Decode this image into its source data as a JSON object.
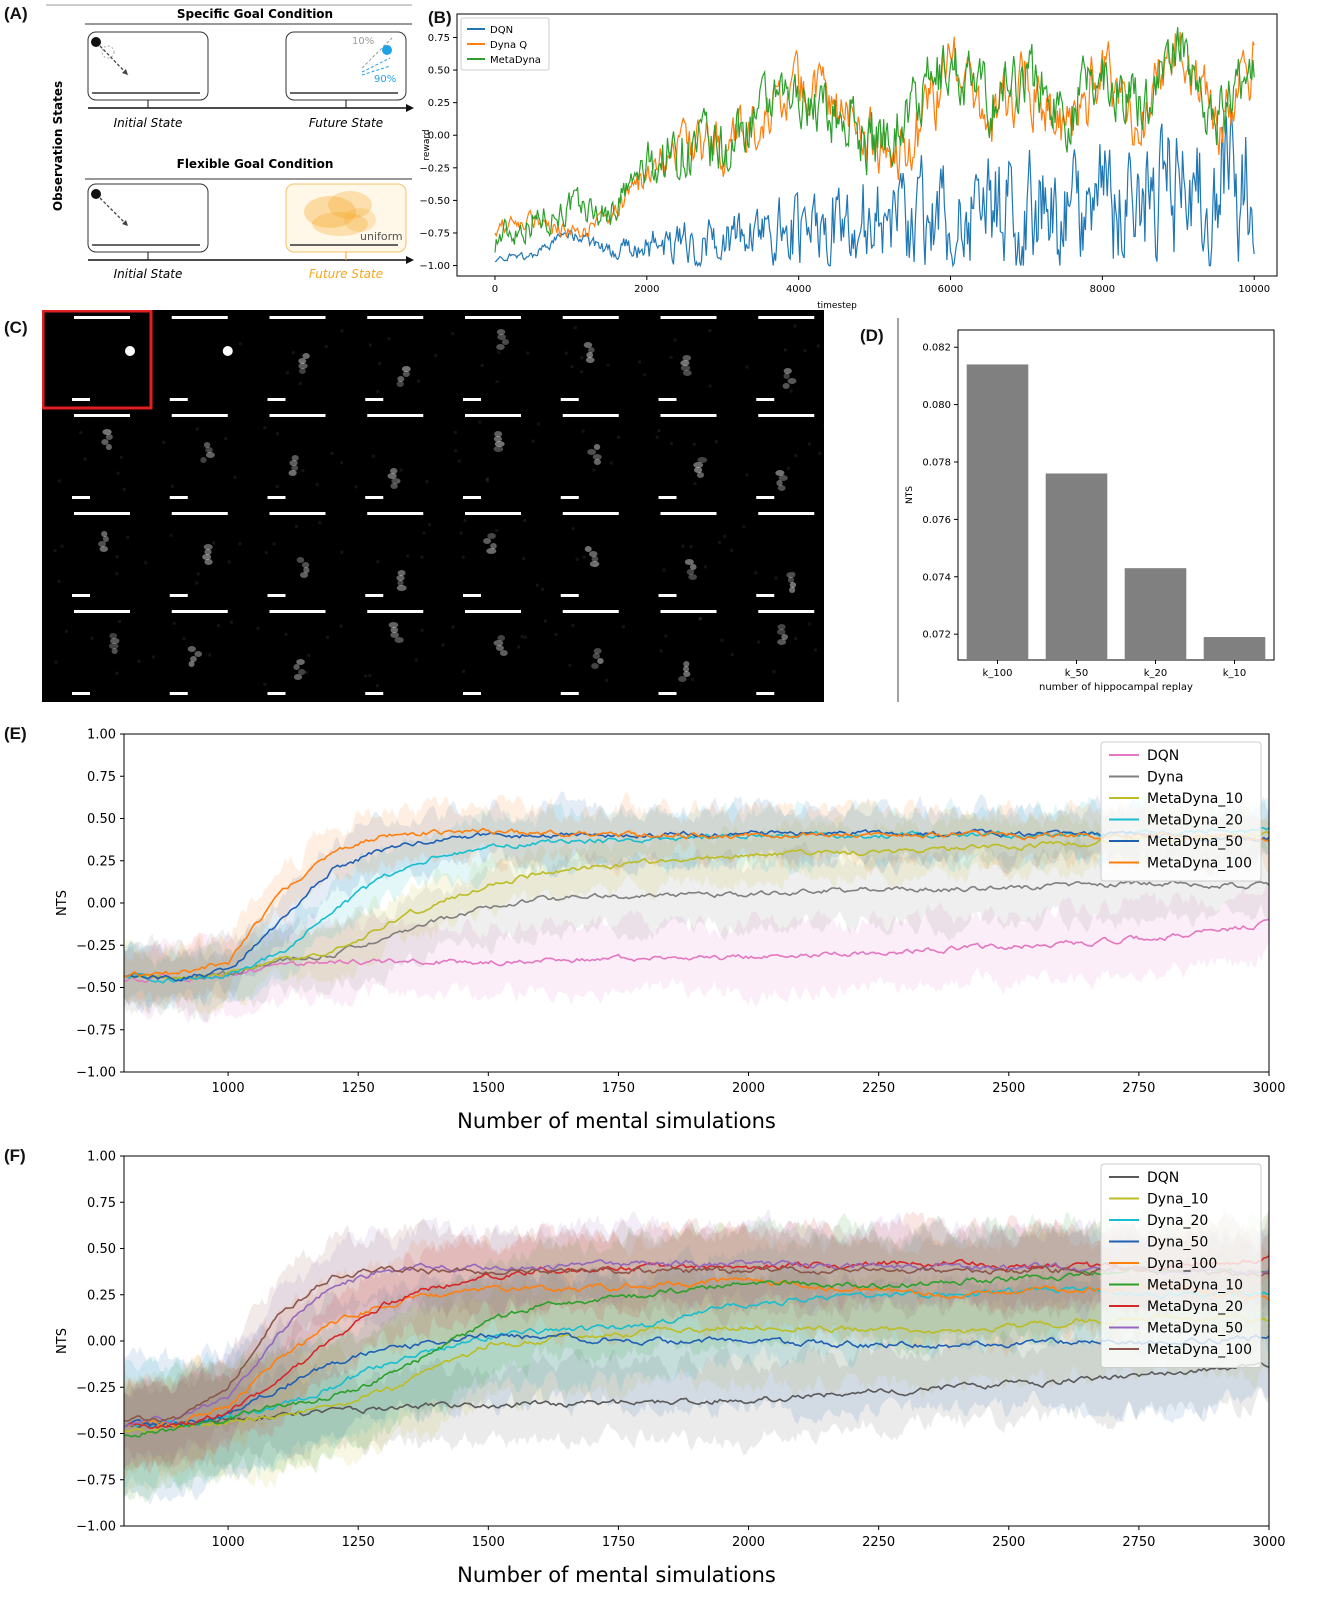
{
  "panel_labels": {
    "a": "(A)",
    "b": "(B)",
    "c": "(C)",
    "d": "(D)",
    "e": "(E)",
    "f": "(F)"
  },
  "panel_a": {
    "side_label": "Observation States",
    "specific_title": "Specific Goal Condition",
    "flexible_title": "Flexible Goal Condition",
    "initial_label": "Initial State",
    "future_label": "Future State",
    "pct_10": "10%",
    "pct_90": "90%",
    "uniform_label": "uniform",
    "colors": {
      "blue": "#1fa3e6",
      "orange": "#f5a623",
      "gray": "#9a9a9a"
    }
  },
  "chart_data": [
    {
      "id": "B",
      "type": "line",
      "xlabel": "timestep",
      "ylabel": "reward",
      "xlim": [
        -500,
        10300
      ],
      "ylim": [
        -1.08,
        0.93
      ],
      "xticks": [
        0,
        2000,
        4000,
        6000,
        8000,
        10000
      ],
      "yticks": [
        -1.0,
        -0.75,
        -0.5,
        -0.25,
        0.0,
        0.25,
        0.5,
        0.75
      ],
      "ytick_labels": [
        "−1.00",
        "−0.75",
        "−0.50",
        "−0.25",
        "0.00",
        "0.25",
        "0.50",
        "0.75"
      ],
      "legend_position": "top-left",
      "series": [
        {
          "name": "DQN",
          "color": "#1f77b4",
          "x": [
            0,
            500,
            1000,
            1500,
            2000,
            2500,
            3000,
            3500,
            4000,
            4500,
            5000,
            5500,
            6000,
            6500,
            7000,
            7500,
            8000,
            8500,
            9000,
            9500,
            10000
          ],
          "y": [
            -0.95,
            -0.92,
            -0.75,
            -0.9,
            -0.85,
            -0.82,
            -0.8,
            -0.78,
            -0.72,
            -0.68,
            -0.62,
            -0.6,
            -0.62,
            -0.58,
            -0.55,
            -0.55,
            -0.52,
            -0.52,
            -0.48,
            -0.48,
            -0.45
          ],
          "spread": [
            0.02,
            0.03,
            0.04,
            0.05,
            0.1,
            0.12,
            0.15,
            0.18,
            0.25,
            0.28,
            0.3,
            0.32,
            0.32,
            0.35,
            0.38,
            0.38,
            0.4,
            0.42,
            0.45,
            0.48,
            0.5
          ]
        },
        {
          "name": "Dyna Q",
          "color": "#ff7f0e",
          "x": [
            0,
            500,
            1000,
            1500,
            2000,
            2500,
            3000,
            3500,
            4000,
            4500,
            5000,
            5500,
            6000,
            6500,
            7000,
            7500,
            8000,
            8500,
            9000,
            9500,
            10000
          ],
          "y": [
            -0.7,
            -0.65,
            -0.75,
            -0.65,
            -0.3,
            -0.05,
            -0.1,
            0.1,
            0.4,
            0.15,
            0.0,
            -0.1,
            0.6,
            0.1,
            0.45,
            -0.05,
            0.5,
            0.05,
            0.7,
            0.1,
            0.5
          ],
          "spread": [
            0.05,
            0.05,
            0.05,
            0.05,
            0.1,
            0.15,
            0.15,
            0.15,
            0.15,
            0.2,
            0.2,
            0.2,
            0.2,
            0.2,
            0.2,
            0.2,
            0.2,
            0.2,
            0.2,
            0.2,
            0.2
          ]
        },
        {
          "name": "MetaDyna",
          "color": "#2ca02c",
          "x": [
            0,
            500,
            1000,
            1500,
            2000,
            2500,
            3000,
            3500,
            4000,
            4500,
            5000,
            5500,
            6000,
            6500,
            7000,
            7500,
            8000,
            8500,
            9000,
            9500,
            10000
          ],
          "y": [
            -0.8,
            -0.65,
            -0.55,
            -0.6,
            -0.25,
            -0.1,
            -0.15,
            0.2,
            0.3,
            0.15,
            -0.05,
            0.2,
            0.55,
            0.25,
            0.5,
            0.15,
            0.5,
            0.2,
            0.72,
            0.1,
            0.55
          ],
          "spread": [
            0.1,
            0.1,
            0.1,
            0.1,
            0.15,
            0.2,
            0.2,
            0.15,
            0.15,
            0.2,
            0.2,
            0.2,
            0.2,
            0.2,
            0.2,
            0.2,
            0.2,
            0.2,
            0.15,
            0.2,
            0.15
          ]
        }
      ]
    },
    {
      "id": "D",
      "type": "bar",
      "categories": [
        "k_100",
        "k_50",
        "k_20",
        "k_10"
      ],
      "values": [
        0.0814,
        0.0776,
        0.0743,
        0.0719
      ],
      "xlabel": "number of hippocampal replay",
      "ylabel": "NTS",
      "ylim": [
        0.0711,
        0.0826
      ],
      "yticks": [
        0.072,
        0.074,
        0.076,
        0.078,
        0.08,
        0.082
      ],
      "ytick_labels": [
        "0.072",
        "0.074",
        "0.076",
        "0.078",
        "0.080",
        "0.082"
      ],
      "bar_color": "#808080"
    },
    {
      "id": "E",
      "type": "line",
      "xlabel": "Number of mental simulations",
      "ylabel": "NTS",
      "xlim": [
        800,
        3000
      ],
      "ylim": [
        -1.0,
        1.0
      ],
      "xticks": [
        1000,
        1250,
        1500,
        1750,
        2000,
        2250,
        2500,
        2750,
        3000
      ],
      "xtick_labels": [
        "1000",
        "1250",
        "1500",
        "1750",
        "2000",
        "2250",
        "2500",
        "2750",
        "3000"
      ],
      "yticks": [
        -1.0,
        -0.75,
        -0.5,
        -0.25,
        0.0,
        0.25,
        0.5,
        0.75,
        1.0
      ],
      "ytick_labels": [
        "−1.00",
        "−0.75",
        "−0.50",
        "−0.25",
        "0.00",
        "0.25",
        "0.50",
        "0.75",
        "1.00"
      ],
      "legend_position": "top-right",
      "series": [
        {
          "name": "DQN",
          "color": "#e377c2",
          "x": [
            800,
            900,
            1000,
            1100,
            1200,
            1300,
            1400,
            1500,
            1600,
            1800,
            2000,
            2200,
            2400,
            2600,
            2800,
            3000
          ],
          "y": [
            -0.45,
            -0.45,
            -0.42,
            -0.38,
            -0.35,
            -0.35,
            -0.35,
            -0.35,
            -0.34,
            -0.33,
            -0.32,
            -0.3,
            -0.27,
            -0.24,
            -0.2,
            -0.12
          ],
          "band": 0.2
        },
        {
          "name": "Dyna",
          "color": "#7f7f7f",
          "x": [
            800,
            900,
            1000,
            1100,
            1200,
            1300,
            1400,
            1500,
            1600,
            1800,
            2000,
            2200,
            2400,
            2600,
            2800,
            3000
          ],
          "y": [
            -0.42,
            -0.45,
            -0.42,
            -0.34,
            -0.3,
            -0.2,
            -0.1,
            -0.02,
            0.02,
            0.05,
            0.05,
            0.08,
            0.08,
            0.1,
            0.12,
            0.1
          ],
          "band": 0.2
        },
        {
          "name": "MetaDyna_10",
          "color": "#bcbd22",
          "x": [
            800,
            900,
            1000,
            1100,
            1200,
            1300,
            1400,
            1500,
            1600,
            1800,
            2000,
            2200,
            2400,
            2600,
            2800,
            3000
          ],
          "y": [
            -0.42,
            -0.45,
            -0.42,
            -0.34,
            -0.3,
            -0.12,
            0.0,
            0.1,
            0.18,
            0.24,
            0.28,
            0.3,
            0.32,
            0.35,
            0.38,
            0.4
          ],
          "band": 0.15
        },
        {
          "name": "MetaDyna_20",
          "color": "#17becf",
          "x": [
            800,
            900,
            1000,
            1100,
            1200,
            1300,
            1400,
            1500,
            1600,
            1800,
            2000,
            2200,
            2400,
            2600,
            2800,
            3000
          ],
          "y": [
            -0.42,
            -0.45,
            -0.42,
            -0.3,
            -0.05,
            0.15,
            0.28,
            0.33,
            0.35,
            0.38,
            0.4,
            0.4,
            0.4,
            0.4,
            0.42,
            0.45
          ],
          "band": 0.15
        },
        {
          "name": "MetaDyna_50",
          "color": "#1f5fb4",
          "x": [
            800,
            900,
            1000,
            1100,
            1200,
            1300,
            1400,
            1500,
            1600,
            1800,
            2000,
            2200,
            2400,
            2600,
            2800,
            3000
          ],
          "y": [
            -0.42,
            -0.45,
            -0.4,
            -0.1,
            0.2,
            0.32,
            0.38,
            0.4,
            0.4,
            0.4,
            0.42,
            0.41,
            0.41,
            0.41,
            0.4,
            0.38
          ],
          "band": 0.15
        },
        {
          "name": "MetaDyna_100",
          "color": "#ff7f0e",
          "x": [
            800,
            900,
            1000,
            1100,
            1200,
            1300,
            1400,
            1500,
            1600,
            1800,
            2000,
            2200,
            2400,
            2600,
            2800,
            3000
          ],
          "y": [
            -0.42,
            -0.42,
            -0.35,
            0.05,
            0.3,
            0.4,
            0.42,
            0.42,
            0.41,
            0.4,
            0.4,
            0.4,
            0.4,
            0.4,
            0.4,
            0.38
          ],
          "band": 0.15
        }
      ]
    },
    {
      "id": "F",
      "type": "line",
      "xlabel": "Number of mental simulations",
      "ylabel": "NTS",
      "xlim": [
        800,
        3000
      ],
      "ylim": [
        -1.0,
        1.0
      ],
      "xticks": [
        1000,
        1250,
        1500,
        1750,
        2000,
        2250,
        2500,
        2750,
        3000
      ],
      "xtick_labels": [
        "1000",
        "1250",
        "1500",
        "1750",
        "2000",
        "2250",
        "2500",
        "2750",
        "3000"
      ],
      "yticks": [
        -1.0,
        -0.75,
        -0.5,
        -0.25,
        0.0,
        0.25,
        0.5,
        0.75,
        1.0
      ],
      "ytick_labels": [
        "−1.00",
        "−0.75",
        "−0.50",
        "−0.25",
        "0.00",
        "0.25",
        "0.50",
        "0.75",
        "1.00"
      ],
      "legend_position": "top-right",
      "series": [
        {
          "name": "DQN",
          "color": "#595959",
          "x": [
            800,
            900,
            1000,
            1100,
            1200,
            1300,
            1400,
            1500,
            1600,
            1800,
            2000,
            2200,
            2400,
            2600,
            2800,
            3000
          ],
          "y": [
            -0.45,
            -0.45,
            -0.42,
            -0.4,
            -0.38,
            -0.36,
            -0.35,
            -0.35,
            -0.34,
            -0.33,
            -0.32,
            -0.28,
            -0.25,
            -0.22,
            -0.18,
            -0.12
          ],
          "band": 0.2
        },
        {
          "name": "Dyna_10",
          "color": "#bcbd22",
          "x": [
            800,
            900,
            1000,
            1100,
            1200,
            1300,
            1400,
            1500,
            1600,
            1800,
            2000,
            2200,
            2400,
            2600,
            2800,
            3000
          ],
          "y": [
            -0.48,
            -0.47,
            -0.44,
            -0.4,
            -0.35,
            -0.28,
            -0.15,
            -0.02,
            0.0,
            0.05,
            0.08,
            0.06,
            0.05,
            0.1,
            0.13,
            0.12
          ],
          "band": 0.3
        },
        {
          "name": "Dyna_20",
          "color": "#17becf",
          "x": [
            800,
            900,
            1000,
            1100,
            1200,
            1300,
            1400,
            1500,
            1600,
            1800,
            2000,
            2200,
            2400,
            2600,
            2800,
            3000
          ],
          "y": [
            -0.45,
            -0.45,
            -0.42,
            -0.35,
            -0.25,
            -0.12,
            -0.05,
            0.02,
            0.05,
            0.08,
            0.2,
            0.25,
            0.25,
            0.28,
            0.25,
            0.25
          ],
          "band": 0.3
        },
        {
          "name": "Dyna_50",
          "color": "#1f5fb4",
          "x": [
            800,
            900,
            1000,
            1100,
            1200,
            1300,
            1400,
            1500,
            1600,
            1800,
            2000,
            2200,
            2400,
            2600,
            2800,
            3000
          ],
          "y": [
            -0.45,
            -0.45,
            -0.4,
            -0.25,
            -0.12,
            -0.05,
            0.0,
            0.03,
            0.02,
            0.0,
            0.0,
            -0.02,
            -0.02,
            0.0,
            0.0,
            0.02
          ],
          "band": 0.35
        },
        {
          "name": "Dyna_100",
          "color": "#ff7f0e",
          "x": [
            800,
            900,
            1000,
            1100,
            1200,
            1300,
            1400,
            1500,
            1600,
            1800,
            2000,
            2200,
            2400,
            2600,
            2800,
            3000
          ],
          "y": [
            -0.45,
            -0.45,
            -0.35,
            -0.1,
            0.1,
            0.2,
            0.25,
            0.28,
            0.28,
            0.3,
            0.32,
            0.28,
            0.25,
            0.28,
            0.3,
            0.22
          ],
          "band": 0.25
        },
        {
          "name": "MetaDyna_10",
          "color": "#2ca02c",
          "x": [
            800,
            900,
            1000,
            1100,
            1200,
            1300,
            1400,
            1500,
            1600,
            1800,
            2000,
            2200,
            2400,
            2600,
            2800,
            3000
          ],
          "y": [
            -0.5,
            -0.48,
            -0.42,
            -0.35,
            -0.3,
            -0.2,
            -0.05,
            0.1,
            0.2,
            0.25,
            0.32,
            0.3,
            0.32,
            0.35,
            0.38,
            0.38
          ],
          "band": 0.3
        },
        {
          "name": "MetaDyna_20",
          "color": "#d62728",
          "x": [
            800,
            900,
            1000,
            1100,
            1200,
            1300,
            1400,
            1500,
            1600,
            1800,
            2000,
            2200,
            2400,
            2600,
            2800,
            3000
          ],
          "y": [
            -0.45,
            -0.45,
            -0.38,
            -0.2,
            0.0,
            0.2,
            0.3,
            0.35,
            0.38,
            0.4,
            0.4,
            0.42,
            0.42,
            0.4,
            0.4,
            0.45
          ],
          "band": 0.2
        },
        {
          "name": "MetaDyna_50",
          "color": "#9467bd",
          "x": [
            800,
            900,
            1000,
            1100,
            1200,
            1300,
            1400,
            1500,
            1600,
            1800,
            2000,
            2200,
            2400,
            2600,
            2800,
            3000
          ],
          "y": [
            -0.45,
            -0.42,
            -0.3,
            0.05,
            0.3,
            0.38,
            0.4,
            0.4,
            0.4,
            0.42,
            0.42,
            0.4,
            0.4,
            0.4,
            0.38,
            0.38
          ],
          "band": 0.2
        },
        {
          "name": "MetaDyna_100",
          "color": "#8c564b",
          "x": [
            800,
            900,
            1000,
            1100,
            1200,
            1300,
            1400,
            1500,
            1600,
            1800,
            2000,
            2200,
            2400,
            2600,
            2800,
            3000
          ],
          "y": [
            -0.42,
            -0.42,
            -0.25,
            0.15,
            0.35,
            0.38,
            0.38,
            0.38,
            0.38,
            0.38,
            0.38,
            0.38,
            0.38,
            0.38,
            0.38,
            0.36
          ],
          "band": 0.2
        }
      ]
    }
  ]
}
